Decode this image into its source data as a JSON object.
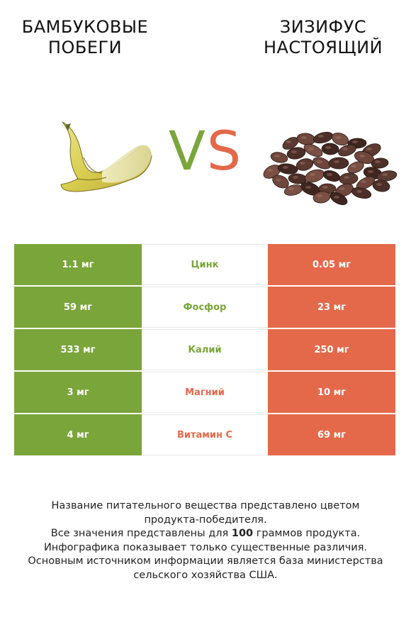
{
  "header": {
    "left_title_line1": "БАМБУКОВЫЕ",
    "left_title_line2": "ПОБЕГИ",
    "right_title_line1": "ЗИЗИФУС",
    "right_title_line2": "НАСТОЯЩИЙ",
    "vs_v": "V",
    "vs_s": "S"
  },
  "colors": {
    "left_accent": "#7aa53a",
    "right_accent": "#e4694a"
  },
  "rows": [
    {
      "left": "1.1 мг",
      "nutrient": "Цинк",
      "right": "0.05 мг",
      "winner": "left"
    },
    {
      "left": "59 мг",
      "nutrient": "Фосфор",
      "right": "23 мг",
      "winner": "left"
    },
    {
      "left": "533 мг",
      "nutrient": "Калий",
      "right": "250 мг",
      "winner": "left"
    },
    {
      "left": "3 мг",
      "nutrient": "Магний",
      "right": "10 мг",
      "winner": "right"
    },
    {
      "left": "4 мг",
      "nutrient": "Витамин C",
      "right": "69 мг",
      "winner": "right"
    }
  ],
  "footer": {
    "line1": "Название питательного вещества представлено цветом",
    "line2": "продукта-победителя.",
    "line3_a": "Все значения представлены для ",
    "line3_b": "100",
    "line3_c": " граммов продукта.",
    "line4": "Инфографика показывает только существенные различия.",
    "line5": "Основным источником информации является база министерства",
    "line6": "сельского хозяйства США."
  }
}
